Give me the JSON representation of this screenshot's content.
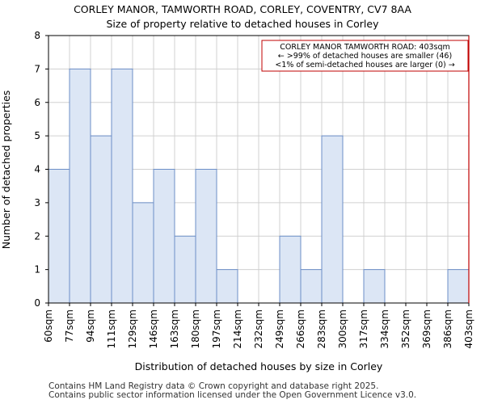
{
  "chart_data": {
    "type": "bar",
    "title": "CORLEY MANOR, TAMWORTH ROAD, CORLEY, COVENTRY, CV7 8AA",
    "subtitle": "Size of property relative to detached houses in Corley",
    "xlabel": "Distribution of detached houses by size in Corley",
    "ylabel": "Number of detached properties",
    "x_tick_labels": [
      "60sqm",
      "77sqm",
      "94sqm",
      "111sqm",
      "129sqm",
      "146sqm",
      "163sqm",
      "180sqm",
      "197sqm",
      "214sqm",
      "232sqm",
      "249sqm",
      "266sqm",
      "283sqm",
      "300sqm",
      "317sqm",
      "334sqm",
      "352sqm",
      "369sqm",
      "386sqm",
      "403sqm"
    ],
    "values": [
      4,
      7,
      5,
      7,
      3,
      4,
      2,
      4,
      1,
      0,
      0,
      2,
      1,
      5,
      0,
      1,
      0,
      0,
      0,
      1
    ],
    "ylim": [
      0,
      8
    ],
    "yticks": [
      0,
      1,
      2,
      3,
      4,
      5,
      6,
      7,
      8
    ],
    "grid": true,
    "bar_color": "#dce6f5",
    "bar_edge_color": "#6d8fc7",
    "marker": {
      "x_label": "403sqm",
      "color": "#c00000"
    },
    "annotation": {
      "lines": [
        "CORLEY MANOR TAMWORTH ROAD: 403sqm",
        "← >99% of detached houses are smaller (46)",
        "<1% of semi-detached houses are larger (0) →"
      ],
      "border_color": "#c00000"
    }
  },
  "footer": {
    "line1": "Contains HM Land Registry data © Crown copyright and database right 2025.",
    "line2": "Contains public sector information licensed under the Open Government Licence v3.0."
  }
}
